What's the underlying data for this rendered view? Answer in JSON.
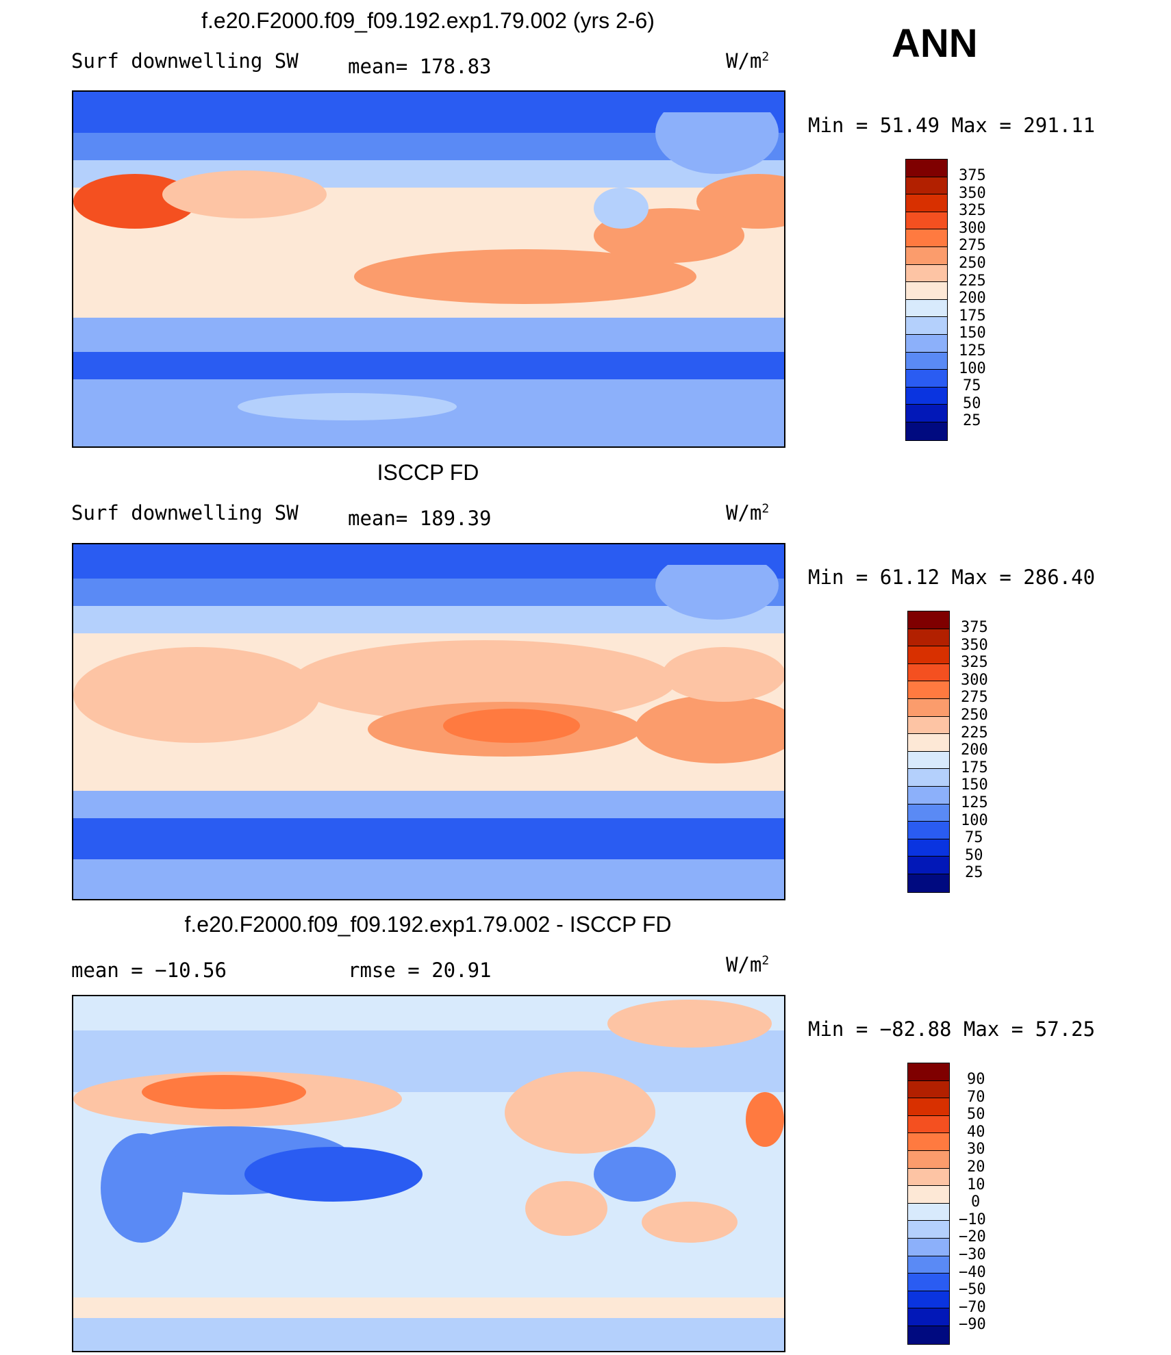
{
  "season": "ANN",
  "units_text": "W/m",
  "units_sup": "2",
  "panels": [
    {
      "title": "f.e20.F2000.f09_f09.192.exp1.79.002 (yrs 2-6)",
      "left_label": "Surf downwelling SW",
      "center_label": "mean= 178.83",
      "minmax": "Min =   51.49 Max = 291.11",
      "colorbar_labels": [
        "375",
        "350",
        "325",
        "300",
        "275",
        "250",
        "225",
        "200",
        "175",
        "150",
        "125",
        "100",
        "75",
        "50",
        "25"
      ],
      "colorbar_colors": [
        "#7f0000",
        "#b22000",
        "#d83000",
        "#f45020",
        "#ff7a40",
        "#fb9c6c",
        "#fdc4a4",
        "#fde8d6",
        "#d8eafc",
        "#b4d0fc",
        "#8cb0fa",
        "#5a8af5",
        "#2a5cf2",
        "#0a34e0",
        "#0218b8",
        "#000a80"
      ],
      "chart_data": {
        "type": "heatmap",
        "title": "f.e20.F2000.f09_f09.192.exp1.79.002 (yrs 2-6)",
        "variable": "Surf downwelling SW",
        "units": "W/m2",
        "mean": 178.83,
        "min": 51.49,
        "max": 291.11,
        "levels": [
          25,
          50,
          75,
          100,
          125,
          150,
          175,
          200,
          225,
          250,
          275,
          300,
          325,
          350,
          375
        ]
      }
    },
    {
      "title": "ISCCP FD",
      "left_label": "Surf downwelling SW",
      "center_label": "mean= 189.39",
      "minmax": "Min =   61.12 Max = 286.40",
      "colorbar_labels": [
        "375",
        "350",
        "325",
        "300",
        "275",
        "250",
        "225",
        "200",
        "175",
        "150",
        "125",
        "100",
        "75",
        "50",
        "25"
      ],
      "colorbar_colors": [
        "#7f0000",
        "#b22000",
        "#d83000",
        "#f45020",
        "#ff7a40",
        "#fb9c6c",
        "#fdc4a4",
        "#fde8d6",
        "#d8eafc",
        "#b4d0fc",
        "#8cb0fa",
        "#5a8af5",
        "#2a5cf2",
        "#0a34e0",
        "#0218b8",
        "#000a80"
      ],
      "chart_data": {
        "type": "heatmap",
        "title": "ISCCP FD",
        "variable": "Surf downwelling SW",
        "units": "W/m2",
        "mean": 189.39,
        "min": 61.12,
        "max": 286.4,
        "levels": [
          25,
          50,
          75,
          100,
          125,
          150,
          175,
          200,
          225,
          250,
          275,
          300,
          325,
          350,
          375
        ]
      }
    },
    {
      "title": "f.e20.F2000.f09_f09.192.exp1.79.002 - ISCCP FD",
      "left_label": "mean  = −10.56",
      "center_label": "rmse  =   20.91",
      "minmax": "Min = −82.88 Max =   57.25",
      "colorbar_labels": [
        "90",
        "70",
        "50",
        "40",
        "30",
        "20",
        "10",
        "0",
        "−10",
        "−20",
        "−30",
        "−40",
        "−50",
        "−70",
        "−90"
      ],
      "colorbar_colors": [
        "#7f0000",
        "#b22000",
        "#d83000",
        "#f45020",
        "#ff7a40",
        "#fb9c6c",
        "#fdc4a4",
        "#fde8d6",
        "#d8eafc",
        "#b4d0fc",
        "#8cb0fa",
        "#5a8af5",
        "#2a5cf2",
        "#0a34e0",
        "#0218b8",
        "#000a80"
      ],
      "chart_data": {
        "type": "heatmap",
        "title": "f.e20.F2000.f09_f09.192.exp1.79.002 - ISCCP FD",
        "units": "W/m2",
        "mean": -10.56,
        "rmse": 20.91,
        "min": -82.88,
        "max": 57.25,
        "levels": [
          -90,
          -70,
          -50,
          -40,
          -30,
          -20,
          -10,
          0,
          10,
          20,
          30,
          40,
          50,
          70,
          90
        ]
      }
    }
  ]
}
